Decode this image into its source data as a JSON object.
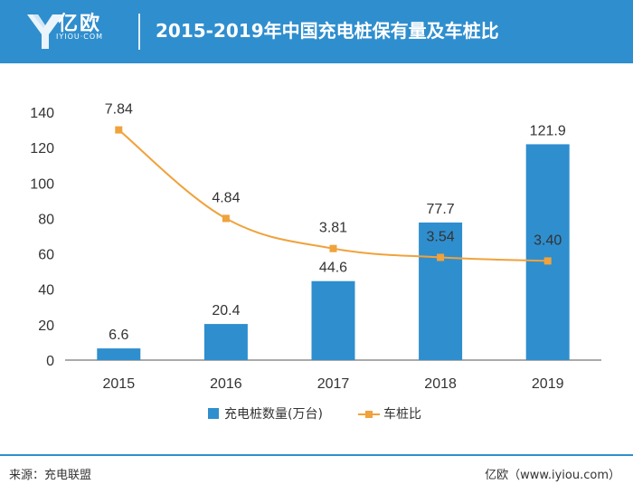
{
  "header": {
    "logo_name": "亿欧",
    "logo_domain": "IYIOU·COM",
    "title": "2015-2019年中国充电桩保有量及车桩比",
    "colors": {
      "bar": "#2f8ece",
      "header": "#2f8ece",
      "line": "#f0a23c"
    }
  },
  "chart_data": {
    "type": "bar",
    "title": "2015-2019年中国充电桩保有量及车桩比",
    "categories": [
      "2015",
      "2016",
      "2017",
      "2018",
      "2019"
    ],
    "ylim": [
      0,
      140
    ],
    "yticks": [
      0,
      20,
      40,
      60,
      80,
      100,
      120,
      140
    ],
    "grid": false,
    "legend_position": "bottom",
    "series": [
      {
        "name": "充电桩数量(万台)",
        "type": "bar",
        "values": [
          6.6,
          20.4,
          44.6,
          77.7,
          121.9
        ],
        "labels": [
          "6.6",
          "20.4",
          "44.6",
          "77.7",
          "121.9"
        ]
      },
      {
        "name": "车桩比",
        "type": "line",
        "values": [
          7.84,
          4.84,
          3.81,
          3.54,
          3.4
        ],
        "labels": [
          "7.84",
          "4.84",
          "3.81",
          "3.54",
          "3.40"
        ],
        "plotted_on_left_axis_scale": [
          130,
          80,
          63,
          58,
          56
        ]
      }
    ]
  },
  "footer": {
    "source": "来源：充电联盟",
    "watermark": "亿欧（www.iyiou.com）"
  }
}
